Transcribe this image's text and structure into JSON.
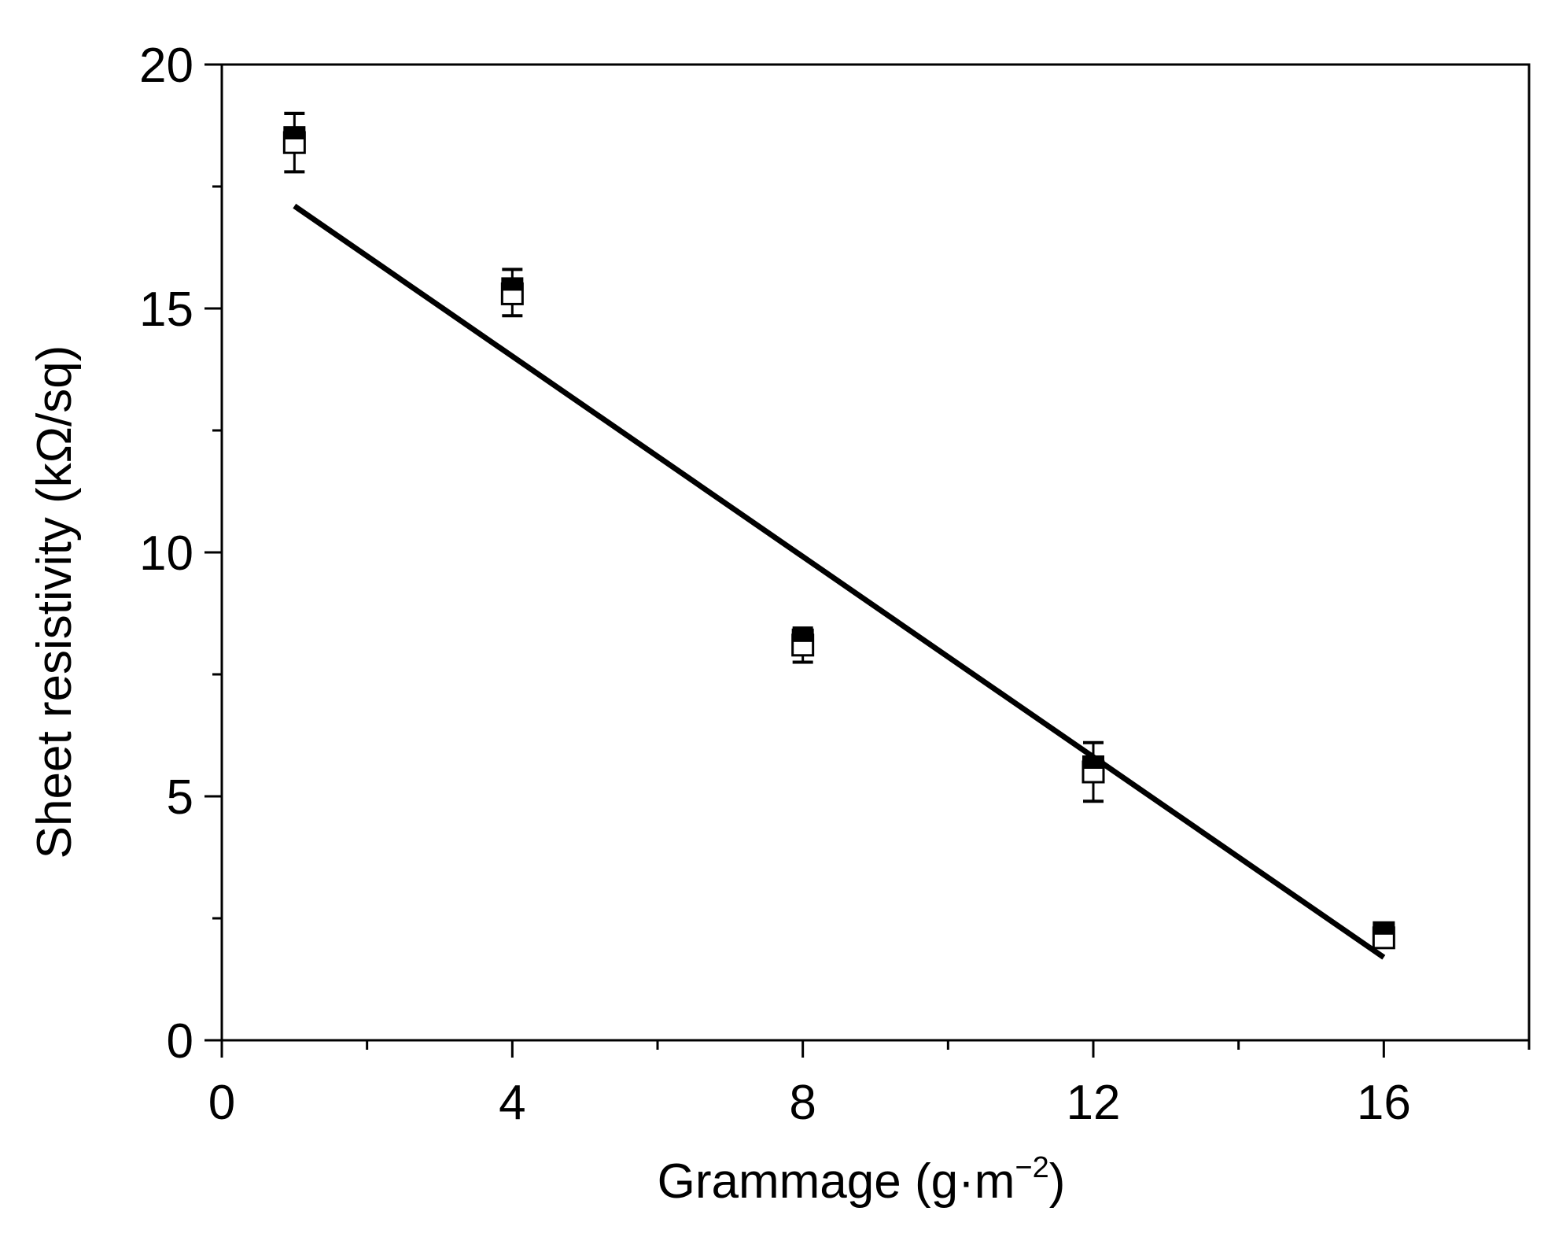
{
  "chart_data": {
    "type": "scatter",
    "title": "",
    "xlabel": "Grammage (g·m",
    "xlabel_sup": "−2",
    "xlabel_close": ")",
    "ylabel": "Sheet resistivity (kΩ/sq)",
    "xlim": [
      0,
      18
    ],
    "ylim": [
      0,
      20
    ],
    "x_ticks": [
      0,
      4,
      8,
      12,
      16
    ],
    "x_tick_labels": [
      "0",
      "4",
      "8",
      "12",
      "16"
    ],
    "x_minor_ticks": [
      2,
      6,
      10,
      14,
      18
    ],
    "y_ticks": [
      0,
      5,
      10,
      15,
      20
    ],
    "y_tick_labels": [
      "0",
      "5",
      "10",
      "15",
      "20"
    ],
    "grid": false,
    "legend": false,
    "series": [
      {
        "marker": "square-half-filled",
        "color": "#000000",
        "points": [
          {
            "x": 1,
            "y": 18.4,
            "err_low": 17.8,
            "err_high": 19.0
          },
          {
            "x": 4,
            "y": 15.3,
            "err_low": 14.85,
            "err_high": 15.8
          },
          {
            "x": 8,
            "y": 8.1,
            "err_low": 7.75,
            "err_high": 8.45
          },
          {
            "x": 12,
            "y": 5.5,
            "err_low": 4.9,
            "err_high": 6.1
          },
          {
            "x": 16,
            "y": 2.1,
            "err_low": 1.95,
            "err_high": 2.3
          }
        ]
      }
    ],
    "fit_line": {
      "x": [
        1,
        16
      ],
      "y": [
        17.1,
        1.7
      ],
      "color": "#000000"
    }
  }
}
